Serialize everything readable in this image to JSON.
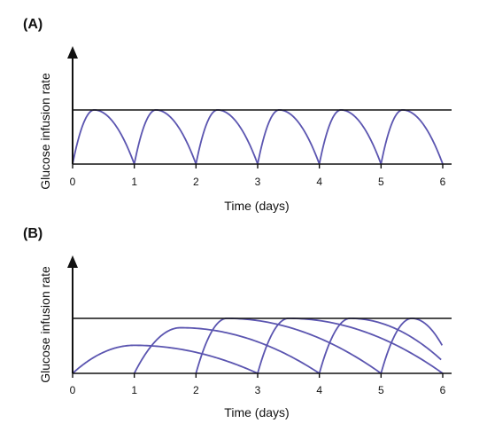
{
  "chart_data": [
    {
      "panel": "(A)",
      "type": "line",
      "xlabel": "Time (days)",
      "ylabel": "Glucose infusion rate",
      "xlim": [
        0,
        6
      ],
      "ylim": [
        0,
        1
      ],
      "x_ticks": [
        "0",
        "1",
        "2",
        "3",
        "4",
        "5",
        "6"
      ],
      "reference_line": 1,
      "pulses": [
        {
          "start": 0,
          "peak_x": 0.35,
          "end": 1,
          "peak_y": 1
        },
        {
          "start": 1,
          "peak_x": 1.35,
          "end": 2,
          "peak_y": 1
        },
        {
          "start": 2,
          "peak_x": 2.35,
          "end": 3,
          "peak_y": 1
        },
        {
          "start": 3,
          "peak_x": 3.35,
          "end": 4,
          "peak_y": 1
        },
        {
          "start": 4,
          "peak_x": 4.35,
          "end": 5,
          "peak_y": 1
        },
        {
          "start": 5,
          "peak_x": 5.35,
          "end": 6,
          "peak_y": 1
        }
      ],
      "line_color": "#5b55b0",
      "axis_color": "#111111"
    },
    {
      "panel": "(B)",
      "type": "line",
      "xlabel": "Time (days)",
      "ylabel": "Glucose infusion rate",
      "xlim": [
        0,
        6
      ],
      "ylim": [
        0,
        1
      ],
      "x_ticks": [
        "0",
        "1",
        "2",
        "3",
        "4",
        "5",
        "6"
      ],
      "reference_line": 1,
      "pulses": [
        {
          "start": 0,
          "peak_x": 1.0,
          "end": 3.0,
          "peak_y": 0.51
        },
        {
          "start": 1,
          "peak_x": 1.75,
          "end": 4.0,
          "peak_y": 0.83
        },
        {
          "start": 2,
          "peak_x": 2.5,
          "end": 5.0,
          "peak_y": 1
        },
        {
          "start": 3,
          "peak_x": 3.5,
          "end": 6.0,
          "peak_y": 1
        },
        {
          "start": 4,
          "peak_x": 4.5,
          "end": 6.2,
          "peak_y": 1
        },
        {
          "start": 5,
          "peak_x": 5.5,
          "end": 6.2,
          "peak_y": 1
        }
      ],
      "line_color": "#5b55b0",
      "axis_color": "#111111"
    }
  ]
}
